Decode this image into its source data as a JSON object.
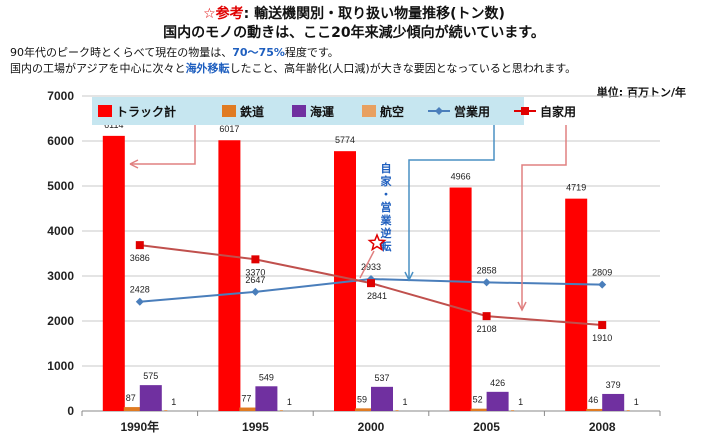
{
  "header": {
    "title_star": "☆参考",
    "title_rest": ": 輸送機関別・取り扱い物量推移(トン数)",
    "subtitle": "国内のモノの動きは、ここ20年来減少傾向が続いています。",
    "note1_a": "90年代のピーク時とくらべて現在の物量は、",
    "note1_hl": "70〜75%",
    "note1_b": "程度です。",
    "note2_a": "国内の工場がアジアを中心に次々と",
    "note2_hl": "海外移転",
    "note2_b": "したこと、高年齢化(人口減)が大きな要因となっていると思われます。",
    "unit": "単位: 百万トン/年"
  },
  "annotation": "自家・営業逆転",
  "colors": {
    "truck": "#ff0000",
    "rail": "#e07b22",
    "sea": "#7030a0",
    "air": "#e8a060",
    "commercial": "#4a7ebb",
    "private": "#c0504d",
    "legend_bg": "#c6e6f0",
    "annotation": "#1f5fbf"
  },
  "chart_data": {
    "type": "bar",
    "categories": [
      "1990年",
      "1995",
      "2000",
      "2005",
      "2008"
    ],
    "ylim": [
      0,
      7000
    ],
    "yticks": [
      "0",
      "1000",
      "2000",
      "3000",
      "4000",
      "5000",
      "6000",
      "7000"
    ],
    "grid": true,
    "legend_position": "top",
    "series": [
      {
        "name": "トラック計",
        "kind": "bar",
        "values": [
          6114,
          6017,
          5774,
          4966,
          4719
        ]
      },
      {
        "name": "鉄道",
        "kind": "bar",
        "values": [
          87,
          77,
          59,
          52,
          46
        ]
      },
      {
        "name": "海運",
        "kind": "bar",
        "values": [
          575,
          549,
          537,
          426,
          379
        ]
      },
      {
        "name": "航空",
        "kind": "bar",
        "values": [
          1,
          1,
          1,
          1,
          1
        ]
      },
      {
        "name": "営業用",
        "kind": "line",
        "values": [
          2428,
          2647,
          2933,
          2858,
          2809
        ]
      },
      {
        "name": "自家用",
        "kind": "line",
        "values": [
          3686,
          3370,
          2841,
          2108,
          1910
        ]
      }
    ]
  }
}
